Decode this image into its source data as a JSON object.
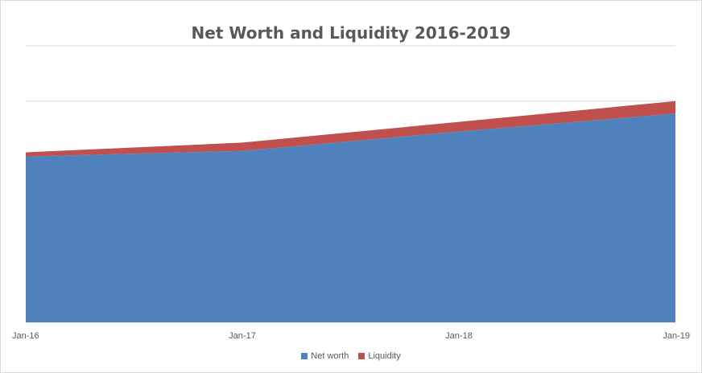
{
  "chart_data": {
    "type": "area",
    "stacked": true,
    "title": "Net Worth and Liquidity 2016-2019",
    "x": [
      "Jan-16",
      "Jan-17",
      "Jan-18",
      "Jan-19"
    ],
    "ylim": [
      0,
      100
    ],
    "grid": true,
    "y_tick_labels_visible": false,
    "legend_position": "bottom",
    "series": [
      {
        "name": "Net worth",
        "values": [
          60,
          62,
          69,
          75.5
        ],
        "color": "#4f81bd"
      },
      {
        "name": "Liquidity",
        "values": [
          1.5,
          3.0,
          3.5,
          4.5
        ],
        "color": "#c0504d"
      }
    ],
    "gridline_color": "#d9d9d9"
  }
}
